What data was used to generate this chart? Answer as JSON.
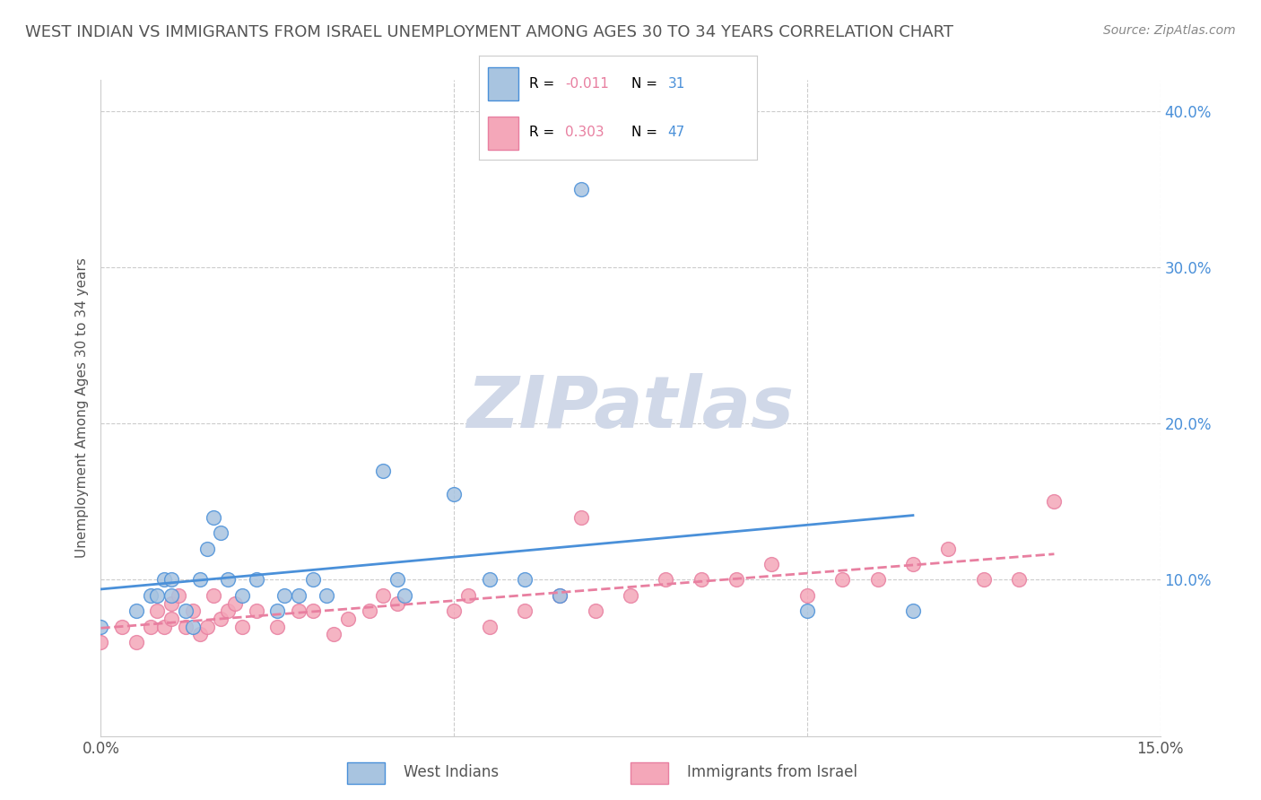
{
  "title": "WEST INDIAN VS IMMIGRANTS FROM ISRAEL UNEMPLOYMENT AMONG AGES 30 TO 34 YEARS CORRELATION CHART",
  "source": "Source: ZipAtlas.com",
  "ylabel": "Unemployment Among Ages 30 to 34 years",
  "xlim": [
    0.0,
    0.15
  ],
  "ylim": [
    0.0,
    0.42
  ],
  "legend_labels": [
    "West Indians",
    "Immigrants from Israel"
  ],
  "legend_R": [
    "-0.011",
    "0.303"
  ],
  "legend_N": [
    "31",
    "47"
  ],
  "color_blue": "#a8c4e0",
  "color_pink": "#f4a7b9",
  "line_blue": "#4a90d9",
  "line_pink": "#e87fa0",
  "background_color": "#ffffff",
  "grid_color": "#cccccc",
  "title_color": "#555555",
  "watermark_color": "#d0d8e8",
  "west_indian_x": [
    0.0,
    0.005,
    0.007,
    0.008,
    0.009,
    0.01,
    0.01,
    0.012,
    0.013,
    0.014,
    0.015,
    0.016,
    0.017,
    0.018,
    0.02,
    0.022,
    0.025,
    0.026,
    0.028,
    0.03,
    0.032,
    0.04,
    0.042,
    0.043,
    0.05,
    0.055,
    0.06,
    0.065,
    0.068,
    0.1,
    0.115
  ],
  "west_indian_y": [
    0.07,
    0.08,
    0.09,
    0.09,
    0.1,
    0.09,
    0.1,
    0.08,
    0.07,
    0.1,
    0.12,
    0.14,
    0.13,
    0.1,
    0.09,
    0.1,
    0.08,
    0.09,
    0.09,
    0.1,
    0.09,
    0.17,
    0.1,
    0.09,
    0.155,
    0.1,
    0.1,
    0.09,
    0.35,
    0.08,
    0.08
  ],
  "israel_x": [
    0.0,
    0.003,
    0.005,
    0.007,
    0.008,
    0.009,
    0.01,
    0.01,
    0.011,
    0.012,
    0.013,
    0.014,
    0.015,
    0.016,
    0.017,
    0.018,
    0.019,
    0.02,
    0.022,
    0.025,
    0.028,
    0.03,
    0.033,
    0.035,
    0.038,
    0.04,
    0.042,
    0.05,
    0.052,
    0.055,
    0.06,
    0.065,
    0.068,
    0.07,
    0.075,
    0.08,
    0.085,
    0.09,
    0.095,
    0.1,
    0.105,
    0.11,
    0.115,
    0.12,
    0.125,
    0.13,
    0.135
  ],
  "israel_y": [
    0.06,
    0.07,
    0.06,
    0.07,
    0.08,
    0.07,
    0.075,
    0.085,
    0.09,
    0.07,
    0.08,
    0.065,
    0.07,
    0.09,
    0.075,
    0.08,
    0.085,
    0.07,
    0.08,
    0.07,
    0.08,
    0.08,
    0.065,
    0.075,
    0.08,
    0.09,
    0.085,
    0.08,
    0.09,
    0.07,
    0.08,
    0.09,
    0.14,
    0.08,
    0.09,
    0.1,
    0.1,
    0.1,
    0.11,
    0.09,
    0.1,
    0.1,
    0.11,
    0.12,
    0.1,
    0.1,
    0.15
  ]
}
